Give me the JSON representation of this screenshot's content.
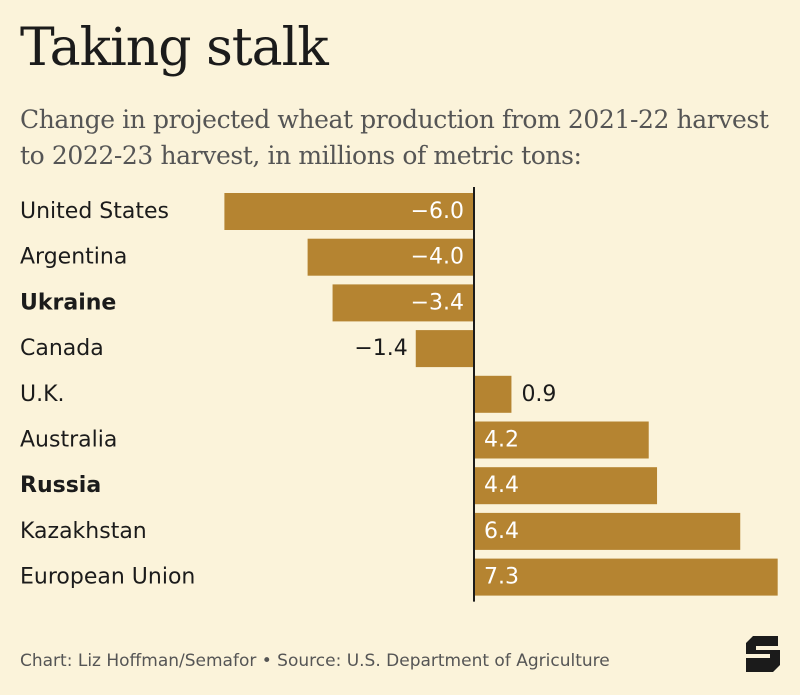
{
  "header": {
    "title": "Taking stalk",
    "subtitle": "Change in projected wheat production from 2021-22 harvest to 2022-23 harvest, in millions of metric tons:"
  },
  "colors": {
    "background": "#fbf3da",
    "bar": "#b58431",
    "axis": "#1b1b1b",
    "text": "#1b1b1b",
    "muted": "#555555"
  },
  "chart_data": {
    "type": "bar",
    "orientation": "horizontal",
    "categories": [
      "United States",
      "Argentina",
      "Ukraine",
      "Canada",
      "U.K.",
      "Australia",
      "Russia",
      "Kazakhstan",
      "European Union"
    ],
    "values": [
      -6.0,
      -4.0,
      -3.4,
      -1.4,
      0.9,
      4.2,
      4.4,
      6.4,
      7.3
    ],
    "value_labels": [
      "−6.0",
      "−4.0",
      "−3.4",
      "−1.4",
      "0.9",
      "4.2",
      "4.4",
      "6.4",
      "7.3"
    ],
    "bold_categories": [
      "Ukraine",
      "Russia"
    ],
    "xlim": [
      -6.0,
      7.3
    ],
    "grid": false
  },
  "footer": {
    "credit": "Chart: Liz Hoffman/Semafor • Source: U.S. Department of Agriculture"
  },
  "logo": {
    "icon": "semafor-s-logo"
  }
}
